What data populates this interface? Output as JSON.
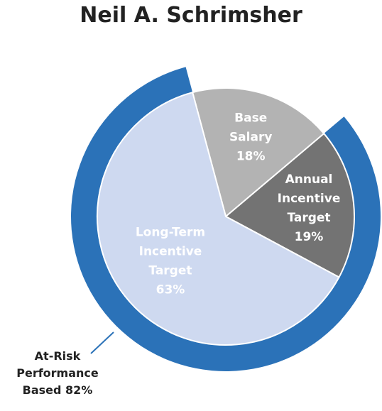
{
  "chart_data": {
    "type": "pie",
    "title": "Neil A. Schrimsher",
    "slices": [
      {
        "label_lines": [
          "Base",
          "Salary",
          "18%"
        ],
        "value": 18,
        "color": "#b3b3b3",
        "text_color": "#ffffff"
      },
      {
        "label_lines": [
          "Annual",
          "Incentive",
          "Target",
          "19%"
        ],
        "value": 19,
        "color": "#737373",
        "text_color": "#ffffff"
      },
      {
        "label_lines": [
          "Long-Term",
          "Incentive",
          "Target",
          "63%"
        ],
        "value": 63,
        "color": "#ced9f0",
        "text_color": "#ffffff"
      }
    ],
    "outer_ring": {
      "label_lines": [
        "At-Risk",
        "Performance",
        "Based 82%"
      ],
      "value": 82,
      "color": "#2b72b8"
    }
  }
}
